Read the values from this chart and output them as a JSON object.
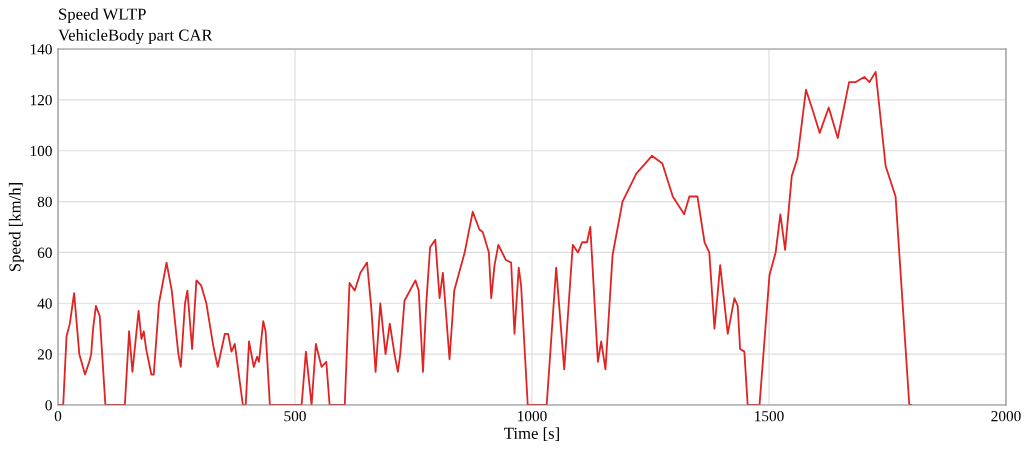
{
  "chart_data": {
    "type": "line",
    "title": "Speed WLTP",
    "subtitle": "VehicleBody part CAR",
    "xlabel": "Time [s]",
    "ylabel": "Speed [km/h]",
    "xlim": [
      0,
      2000
    ],
    "xticks": [
      0,
      500,
      1000,
      1500,
      2000
    ],
    "ylim": [
      0,
      140
    ],
    "yticks": [
      0,
      20,
      40,
      60,
      80,
      100,
      120,
      140
    ],
    "grid": true,
    "marker": "none",
    "line_style": "solid",
    "series": [
      {
        "color": "#e02424",
        "x": [
          0,
          11,
          18,
          25,
          34,
          45,
          57,
          66,
          70,
          74,
          80,
          88,
          100,
          141,
          150,
          157,
          170,
          176,
          181,
          186,
          197,
          202,
          213,
          229,
          240,
          254,
          259,
          268,
          273,
          283,
          292,
          302,
          313,
          326,
          330,
          337,
          352,
          359,
          366,
          373,
          378,
          390,
          396,
          403,
          413,
          420,
          424,
          433,
          438,
          447,
          514,
          523,
          535,
          544,
          556,
          566,
          573,
          605,
          615,
          626,
          638,
          652,
          661,
          670,
          680,
          691,
          700,
          710,
          717,
          722,
          731,
          754,
          761,
          770,
          777,
          785,
          796,
          805,
          812,
          826,
          836,
          858,
          875,
          889,
          896,
          909,
          914,
          921,
          929,
          945,
          956,
          963,
          972,
          977,
          991,
          1031,
          1051,
          1068,
          1086,
          1097,
          1106,
          1116,
          1123,
          1139,
          1146,
          1155,
          1170,
          1191,
          1220,
          1253,
          1275,
          1297,
          1321,
          1332,
          1349,
          1364,
          1374,
          1385,
          1397,
          1413,
          1427,
          1434,
          1439,
          1448,
          1455,
          1480,
          1501,
          1514,
          1524,
          1534,
          1548,
          1560,
          1578,
          1592,
          1607,
          1626,
          1645,
          1669,
          1683,
          1701,
          1712,
          1725,
          1746,
          1767,
          1796,
          1800
        ],
        "values": [
          0,
          0,
          27,
          32,
          44,
          20,
          12,
          17,
          20,
          30,
          39,
          35,
          0,
          0,
          29,
          13,
          37,
          26,
          29,
          22,
          12,
          12,
          40,
          56,
          45,
          20,
          15,
          40,
          45,
          22,
          49,
          47,
          40,
          25,
          21,
          15,
          28,
          28,
          21,
          24,
          17,
          0,
          0,
          25,
          15,
          19,
          17,
          33,
          29,
          0,
          0,
          21,
          0,
          24,
          15,
          17,
          0,
          0,
          48,
          45,
          52,
          56,
          38,
          13,
          40,
          20,
          32,
          20,
          13,
          20,
          41,
          49,
          45,
          13,
          40,
          62,
          65,
          42,
          52,
          18,
          45,
          60,
          76,
          69,
          68,
          60,
          42,
          55,
          63,
          57,
          56,
          28,
          54,
          47,
          0,
          0,
          54,
          14,
          63,
          60,
          64,
          64,
          70,
          17,
          25,
          14,
          59,
          80,
          91,
          98,
          95,
          82,
          75,
          82,
          82,
          64,
          60,
          30,
          55,
          28,
          42,
          39,
          22,
          21,
          0,
          0,
          51,
          60,
          75,
          61,
          90,
          97,
          124,
          116,
          107,
          117,
          105,
          127,
          127,
          129,
          127,
          131,
          94,
          82,
          0,
          0
        ]
      }
    ]
  }
}
